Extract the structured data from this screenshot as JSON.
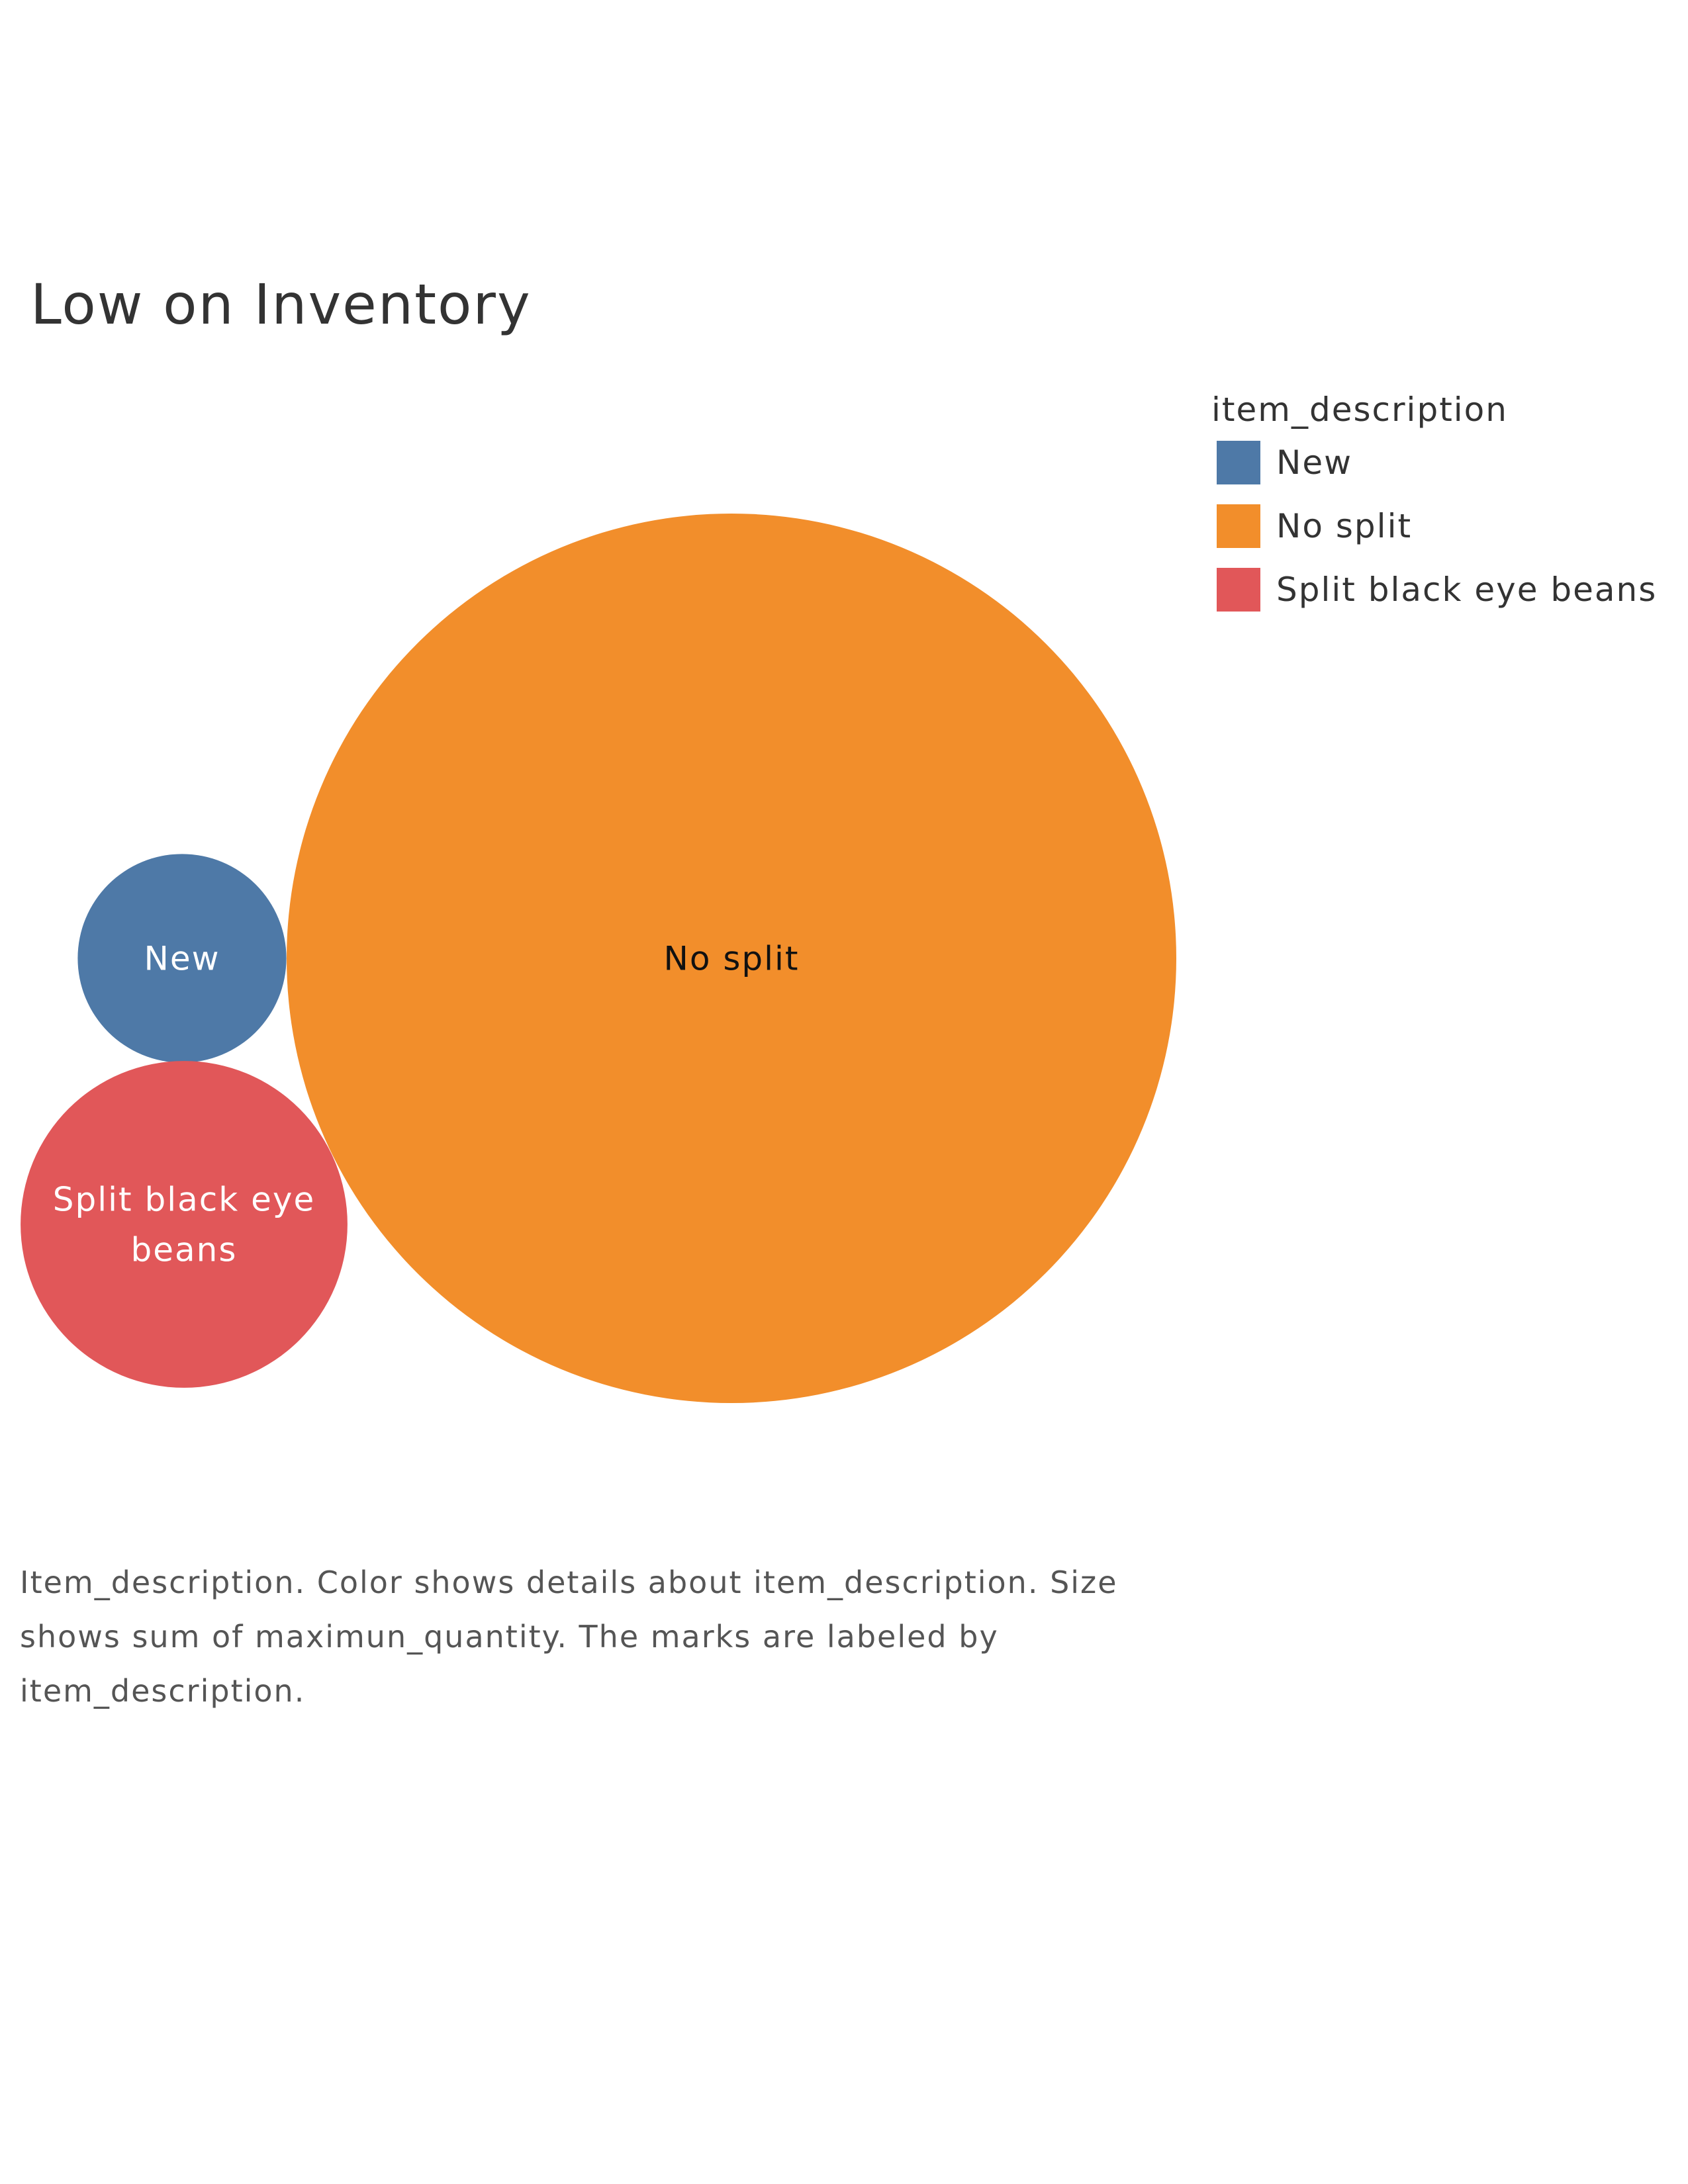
{
  "chart_data": {
    "type": "bubble",
    "title": "Low on Inventory",
    "legend": {
      "title": "item_description",
      "placement": "top-right"
    },
    "series": [
      {
        "name": "New",
        "label": "New",
        "value": 5.5,
        "color": "#4e79a7",
        "label_color": "#ffffff"
      },
      {
        "name": "No split",
        "label": "No split",
        "value": 100,
        "color": "#f28e2b",
        "label_color": "#111111"
      },
      {
        "name": "Split black eye beans",
        "label": "Split black eye beans",
        "value": 13.5,
        "color": "#e15759",
        "label_color": "#ffffff"
      }
    ],
    "caption": "Item_description.  Color shows details about item_description. Size shows sum of maximun_quantity.  The marks are labeled by item_description."
  }
}
